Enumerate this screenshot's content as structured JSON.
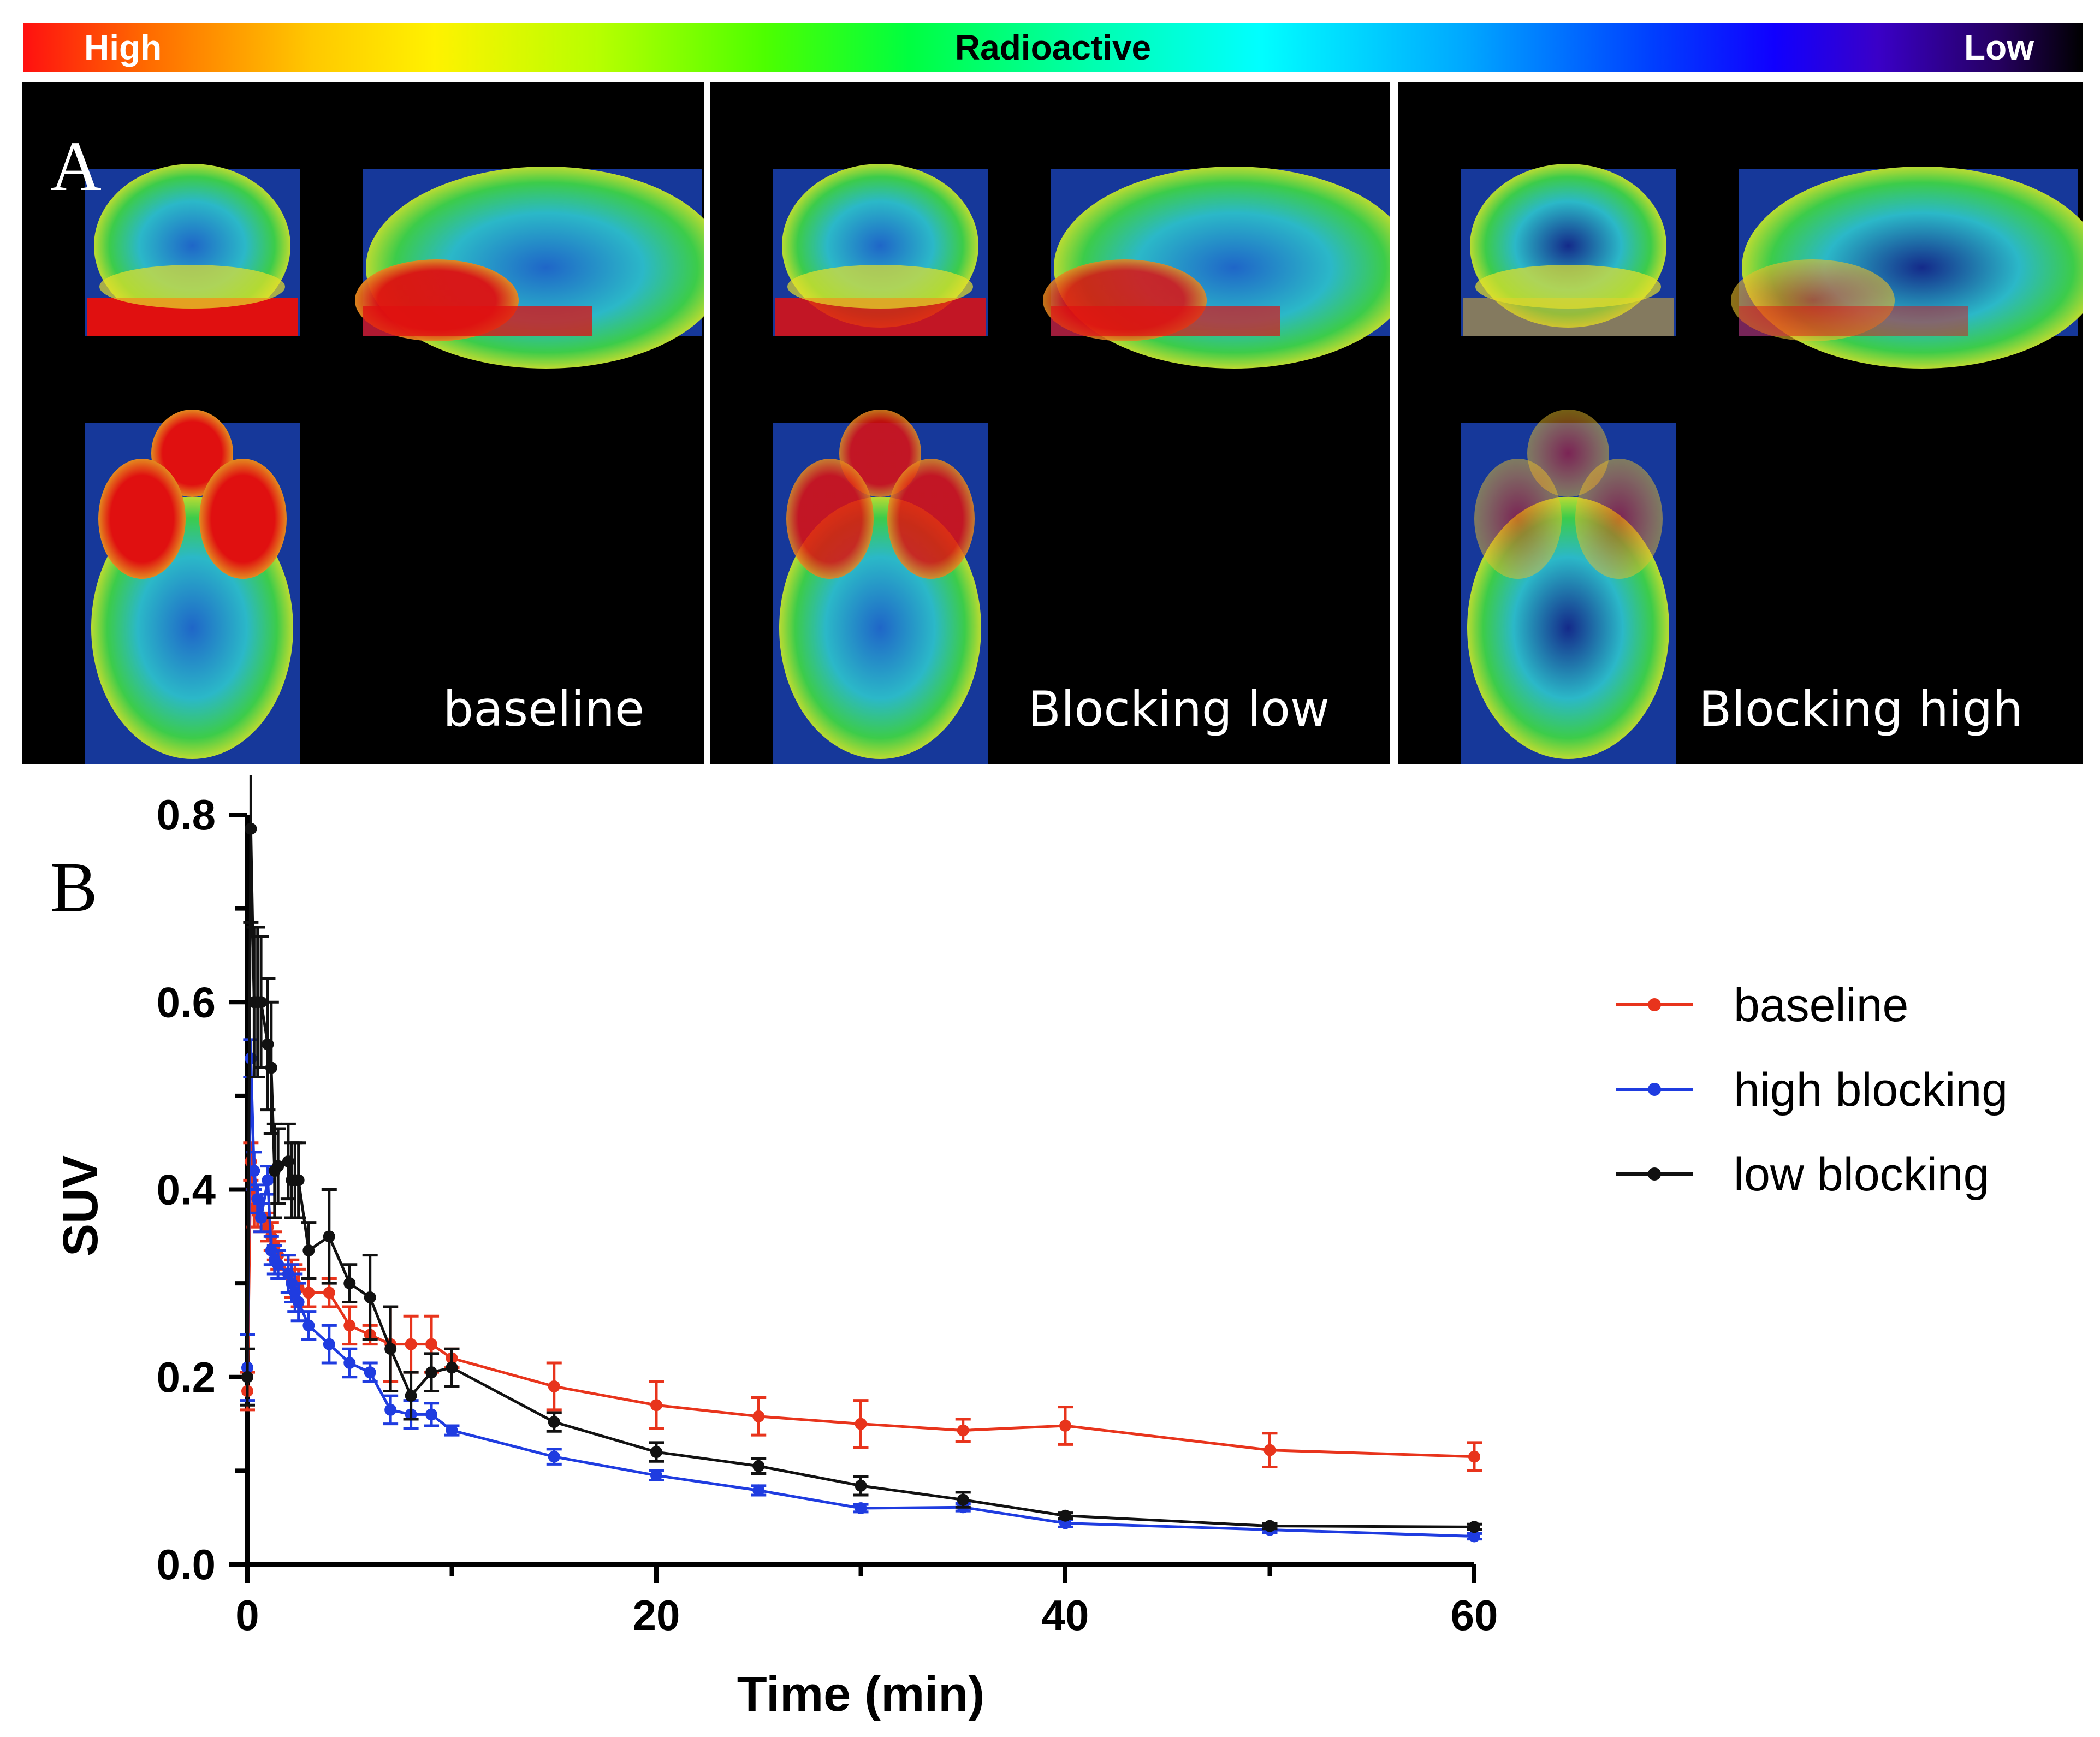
{
  "colorbar": {
    "high_label": "High",
    "title": "Radioactive",
    "low_label": "Low"
  },
  "panel_a": {
    "letter": "A",
    "panels": [
      {
        "caption": "baseline",
        "hot": [
          1.0,
          0.95,
          1.0
        ]
      },
      {
        "caption": "Blocking low",
        "hot": [
          0.85,
          0.85,
          0.85
        ]
      },
      {
        "caption": "Blocking high",
        "hot": [
          0.55,
          0.6,
          0.5
        ]
      }
    ]
  },
  "panel_b": {
    "letter": "B"
  },
  "colors": {
    "baseline": "#e8341c",
    "high_blocking": "#1f3ce0",
    "low_blocking": "#111111"
  },
  "chart_data": {
    "type": "line",
    "xlabel": "Time (min)",
    "ylabel": "SUV",
    "xlim": [
      0,
      60
    ],
    "ylim": [
      0,
      0.8
    ],
    "xticks": [
      0,
      20,
      40,
      60
    ],
    "yticks": [
      0.0,
      0.2,
      0.4,
      0.6,
      0.8
    ],
    "x_tick_labels": [
      "0",
      "20",
      "40",
      "60"
    ],
    "y_tick_labels": [
      "0.0",
      "0.2",
      "0.4",
      "0.6",
      "0.8"
    ],
    "grid": false,
    "legend_position": "right",
    "series": [
      {
        "name": "baseline",
        "color": "#e8341c",
        "x": [
          0.0,
          0.17,
          0.33,
          0.5,
          0.67,
          1.0,
          1.17,
          1.33,
          1.5,
          2.0,
          2.17,
          2.33,
          2.5,
          3.0,
          4.0,
          5.0,
          6.0,
          7.0,
          8.0,
          9.0,
          10.0,
          15.0,
          20.0,
          25.0,
          30.0,
          35.0,
          40.0,
          50.0,
          60.0
        ],
        "y": [
          0.185,
          0.43,
          0.38,
          0.375,
          0.37,
          0.36,
          0.35,
          0.34,
          0.33,
          0.31,
          0.305,
          0.3,
          0.295,
          0.29,
          0.29,
          0.255,
          0.245,
          0.235,
          0.235,
          0.235,
          0.22,
          0.19,
          0.17,
          0.158,
          0.15,
          0.143,
          0.148,
          0.122,
          0.115
        ],
        "err": [
          0.02,
          0.02,
          0.02,
          0.015,
          0.015,
          0.015,
          0.015,
          0.015,
          0.015,
          0.02,
          0.02,
          0.02,
          0.02,
          0.015,
          0.015,
          0.02,
          0.01,
          0.04,
          0.03,
          0.03,
          0.01,
          0.025,
          0.025,
          0.02,
          0.025,
          0.012,
          0.02,
          0.018,
          0.015
        ]
      },
      {
        "name": "high blocking",
        "color": "#1f3ce0",
        "x": [
          0.0,
          0.17,
          0.33,
          0.5,
          0.67,
          1.0,
          1.17,
          1.33,
          1.5,
          2.0,
          2.17,
          2.33,
          2.5,
          3.0,
          4.0,
          5.0,
          6.0,
          7.0,
          8.0,
          9.0,
          10.0,
          15.0,
          20.0,
          25.0,
          30.0,
          35.0,
          40.0,
          50.0,
          60.0
        ],
        "y": [
          0.21,
          0.54,
          0.42,
          0.39,
          0.37,
          0.41,
          0.335,
          0.325,
          0.32,
          0.31,
          0.3,
          0.29,
          0.28,
          0.255,
          0.235,
          0.215,
          0.205,
          0.165,
          0.16,
          0.16,
          0.143,
          0.115,
          0.095,
          0.079,
          0.06,
          0.061,
          0.044,
          0.037,
          0.03
        ],
        "err": [
          0.035,
          0.02,
          0.02,
          0.015,
          0.015,
          0.015,
          0.015,
          0.015,
          0.015,
          0.02,
          0.02,
          0.02,
          0.02,
          0.015,
          0.02,
          0.015,
          0.01,
          0.015,
          0.015,
          0.012,
          0.005,
          0.008,
          0.005,
          0.005,
          0.004,
          0.004,
          0.004,
          0.003,
          0.003
        ]
      },
      {
        "name": "low blocking",
        "color": "#111111",
        "x": [
          0.0,
          0.17,
          0.33,
          0.5,
          0.67,
          1.0,
          1.17,
          1.33,
          1.5,
          2.0,
          2.17,
          2.33,
          2.5,
          3.0,
          4.0,
          5.0,
          6.0,
          7.0,
          8.0,
          9.0,
          10.0,
          15.0,
          20.0,
          25.0,
          30.0,
          35.0,
          40.0,
          50.0,
          60.0
        ],
        "y": [
          0.2,
          0.785,
          0.6,
          0.6,
          0.6,
          0.555,
          0.53,
          0.42,
          0.425,
          0.43,
          0.41,
          0.41,
          0.41,
          0.335,
          0.35,
          0.3,
          0.285,
          0.23,
          0.18,
          0.205,
          0.21,
          0.152,
          0.12,
          0.105,
          0.084,
          0.069,
          0.052,
          0.041,
          0.04
        ],
        "err": [
          0.03,
          0.1,
          0.08,
          0.08,
          0.07,
          0.07,
          0.07,
          0.05,
          0.04,
          0.04,
          0.04,
          0.04,
          0.04,
          0.03,
          0.05,
          0.02,
          0.045,
          0.045,
          0.025,
          0.02,
          0.02,
          0.01,
          0.01,
          0.008,
          0.01,
          0.008,
          0.003,
          0.003,
          0.003
        ]
      }
    ]
  }
}
